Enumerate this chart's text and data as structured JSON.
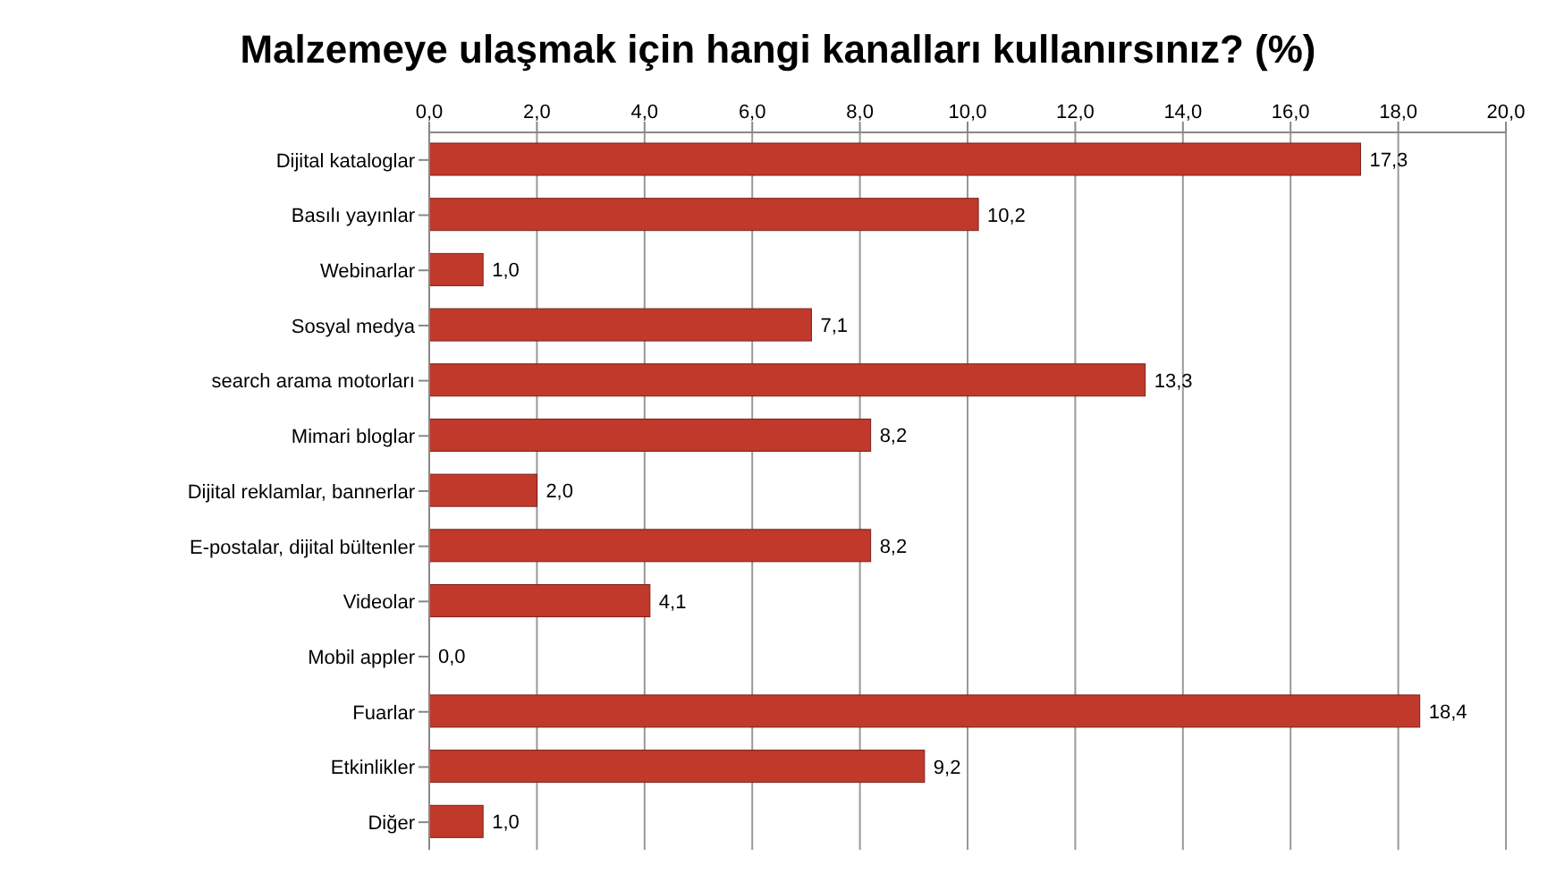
{
  "chart_data": {
    "type": "bar",
    "orientation": "horizontal",
    "title": "Malzemeye ulaşmak için hangi kanalları kullanırsınız? (%)",
    "categories": [
      "Dijital kataloglar",
      "Basılı yayınlar",
      "Webinarlar",
      "Sosyal medya",
      "search arama motorları",
      "Mimari bloglar",
      "Dijital reklamlar, bannerlar",
      "E-postalar, dijital bültenler",
      "Videolar",
      "Mobil appler",
      "Fuarlar",
      "Etkinlikler",
      "Diğer"
    ],
    "values": [
      17.3,
      10.2,
      1.0,
      7.1,
      13.3,
      8.2,
      2.0,
      8.2,
      4.1,
      0.0,
      18.4,
      9.2,
      1.0
    ],
    "value_labels": [
      "17,3",
      "10,2",
      "1,0",
      "7,1",
      "13,3",
      "8,2",
      "2,0",
      "8,2",
      "4,1",
      "0,0",
      "18,4",
      "9,2",
      "1,0"
    ],
    "color": "#c0392b",
    "xlim": [
      0,
      20
    ],
    "xticks": [
      {
        "value": 0,
        "label": "0,0"
      },
      {
        "value": 2,
        "label": "2,0"
      },
      {
        "value": 4,
        "label": "4,0"
      },
      {
        "value": 6,
        "label": "6,0"
      },
      {
        "value": 8,
        "label": "8,0"
      },
      {
        "value": 10,
        "label": "10,0"
      },
      {
        "value": 12,
        "label": "12,0"
      },
      {
        "value": 14,
        "label": "14,0"
      },
      {
        "value": 16,
        "label": "16,0"
      },
      {
        "value": 18,
        "label": "18,0"
      },
      {
        "value": 20,
        "label": "20,0"
      }
    ],
    "grid": "x"
  }
}
